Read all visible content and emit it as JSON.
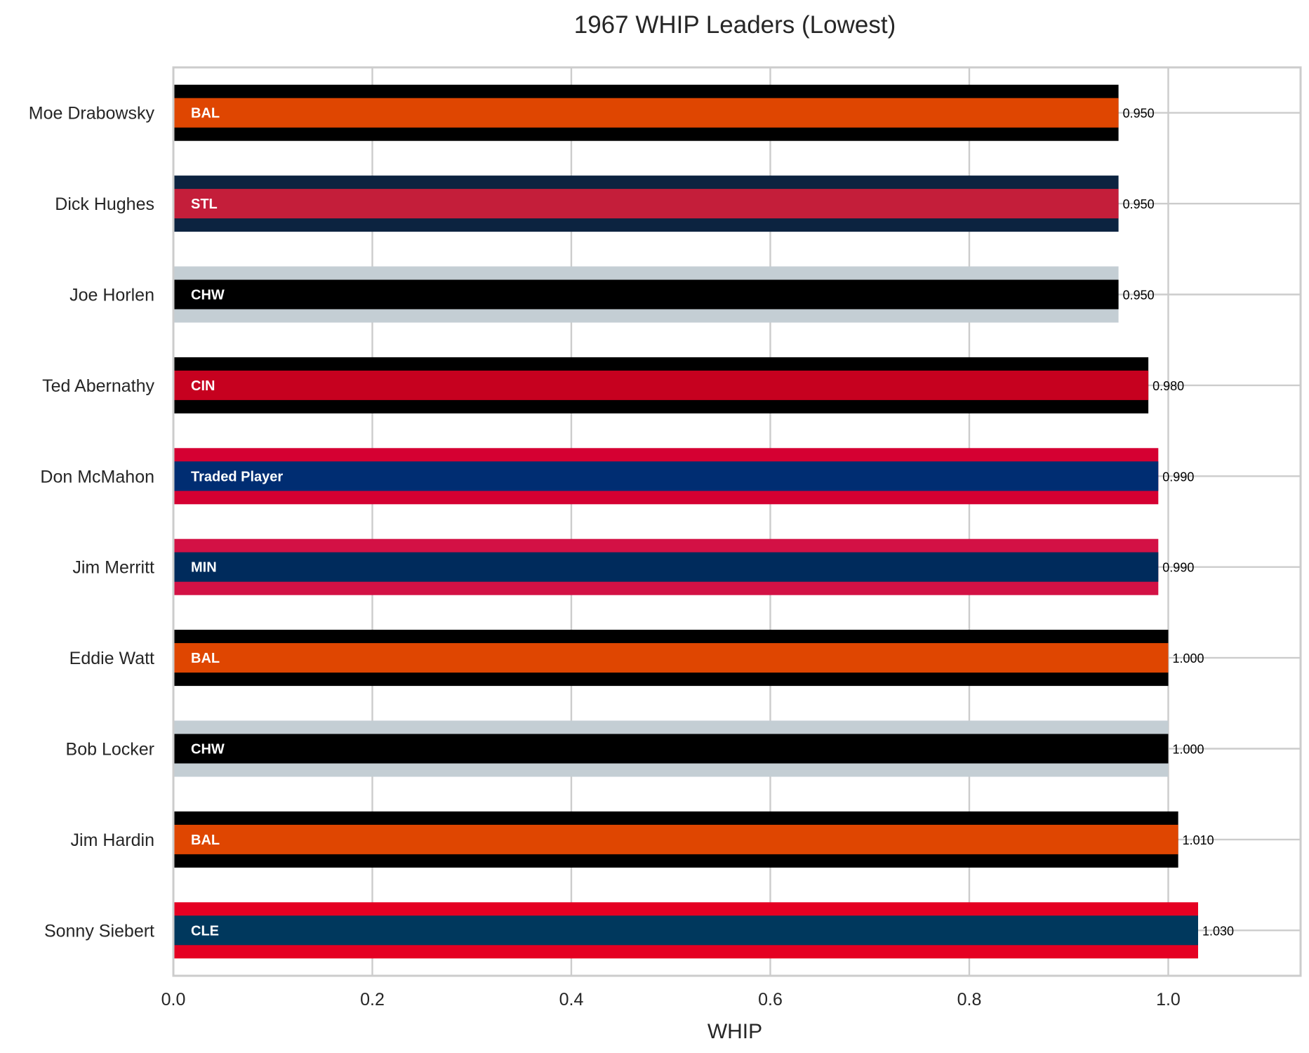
{
  "chart_data": {
    "type": "bar",
    "orientation": "horizontal",
    "title": "1967 WHIP Leaders (Lowest)",
    "xlabel": "WHIP",
    "ylabel": "",
    "xlim": [
      0,
      1.133
    ],
    "xticks": [
      "0.0",
      "0.2",
      "0.4",
      "0.6",
      "0.8",
      "1.0"
    ],
    "grid": true,
    "categories": [
      "Moe Drabowsky",
      "Dick Hughes",
      "Joe Horlen",
      "Ted Abernathy",
      "Don McMahon",
      "Jim Merritt",
      "Eddie Watt",
      "Bob Locker",
      "Jim Hardin",
      "Sonny Siebert"
    ],
    "values": [
      0.95,
      0.95,
      0.95,
      0.98,
      0.99,
      0.99,
      1.0,
      1.0,
      1.01,
      1.03
    ],
    "value_labels": [
      "0.950",
      "0.950",
      "0.950",
      "0.980",
      "0.990",
      "0.990",
      "1.000",
      "1.000",
      "1.010",
      "1.030"
    ],
    "teams": [
      "BAL",
      "STL",
      "CHW",
      "CIN",
      "Traded Player",
      "MIN",
      "BAL",
      "CHW",
      "BAL",
      "CLE"
    ],
    "inner_colors": [
      "#DF4601",
      "#C41E3A",
      "#000000",
      "#C6011F",
      "#002D72",
      "#002B5C",
      "#DF4601",
      "#000000",
      "#DF4601",
      "#00385D"
    ],
    "outer_colors": [
      "#000000",
      "#0C2340",
      "#C4CED4",
      "#000000",
      "#D50032",
      "#D31145",
      "#000000",
      "#C4CED4",
      "#000000",
      "#E50022"
    ]
  }
}
